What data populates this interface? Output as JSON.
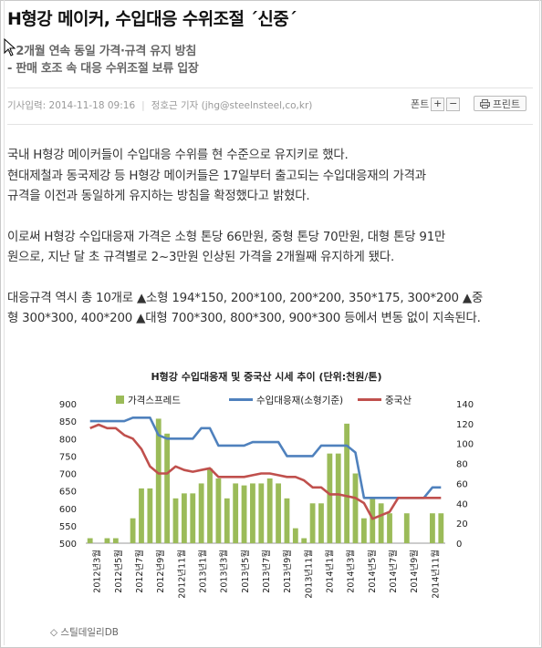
{
  "article": {
    "headline": "H형강 메이커, 수입대응 수위조절 ´신중´",
    "subheads": [
      "- 2개월 연속 동일 가격·규격 유지 방침",
      "- 판매 호조 속 대응 수위조절 보류 입장"
    ],
    "meta": {
      "date_label": "기사입력: 2014-11-18 09:16",
      "reporter_label": "정호근 기자 (jhg@steelnsteel,co,kr)",
      "font_label": "폰트",
      "font_plus": "+",
      "font_minus": "−",
      "print_label": "프린트"
    },
    "paragraphs": [
      [
        "국내 H형강 메이커들이 수입대응 수위를 현 수준으로 유지키로 했다.",
        "현대제철과 동국제강 등 H형강 메이커들은 17일부터 출고되는 수입대응재의 가격과",
        "규격을 이전과 동일하게 유지하는 방침을 확정했다고 밝혔다."
      ],
      [
        "이로써 H형강 수입대응재 가격은 소형 톤당 66만원, 중형 톤당 70만원, 대형 톤당 91만",
        "원으로, 지난 달 초 규격별로 2~3만원 인상된 가격을 2개월째 유지하게 됐다."
      ],
      [
        "대응규격 역시 총 10개로 ▲소형 194*150, 200*100, 200*200, 350*175, 300*200 ▲중",
        "형 300*300, 400*200 ▲대형 700*300, 800*300, 900*300 등에서 변동 없이 지속된다."
      ]
    ],
    "source": "◇ 스틸데일리DB"
  },
  "chart_data": {
    "type": "bar+line",
    "title": "H형강 수입대응재 및 중국산 시세 추이",
    "unit_label": "(단위:천원/톤)",
    "legend": [
      "가격스프레드",
      "수입대응재(소형기준)",
      "중국산"
    ],
    "colors": {
      "bar": "#9bbb59",
      "line_blue": "#4f81bd",
      "line_red": "#c0504d"
    },
    "left_axis": {
      "min": 500,
      "max": 900,
      "ticks": [
        500,
        550,
        600,
        650,
        700,
        750,
        800,
        850,
        900
      ]
    },
    "right_axis": {
      "min": 0,
      "max": 140,
      "ticks": [
        0,
        20,
        40,
        60,
        80,
        100,
        120,
        140
      ]
    },
    "x_labels": [
      "2012년3월",
      "2012년5월",
      "2012년7월",
      "2012년9월",
      "2012년11월",
      "2013년1월",
      "2013년3월",
      "2013년5월",
      "2013년7월",
      "2013년9월",
      "2013년11월",
      "2014년1월",
      "2014년3월",
      "2014년5월",
      "2014년7월",
      "2014년9월",
      "2014년11월"
    ],
    "series": [
      {
        "name": "가격스프레드",
        "type": "bar",
        "axis": "right",
        "values": [
          5,
          0,
          5,
          5,
          0,
          25,
          55,
          55,
          125,
          110,
          45,
          50,
          50,
          60,
          75,
          65,
          45,
          60,
          58,
          60,
          60,
          65,
          60,
          45,
          15,
          5,
          40,
          40,
          90,
          90,
          120,
          70,
          25,
          45,
          40,
          30,
          0,
          30,
          0,
          0,
          30,
          30
        ]
      },
      {
        "name": "수입대응재(소형기준)",
        "type": "line",
        "axis": "left",
        "values": [
          850,
          850,
          850,
          850,
          850,
          860,
          860,
          860,
          810,
          800,
          800,
          800,
          800,
          830,
          830,
          780,
          780,
          780,
          780,
          790,
          790,
          790,
          790,
          750,
          750,
          750,
          750,
          780,
          780,
          780,
          780,
          760,
          630,
          630,
          630,
          630,
          630,
          630,
          630,
          630,
          660,
          660
        ]
      },
      {
        "name": "중국산",
        "type": "line",
        "axis": "left",
        "values": [
          830,
          840,
          830,
          830,
          810,
          800,
          770,
          720,
          700,
          700,
          720,
          710,
          705,
          710,
          715,
          690,
          690,
          690,
          690,
          695,
          700,
          700,
          695,
          690,
          690,
          680,
          660,
          660,
          640,
          640,
          635,
          630,
          615,
          570,
          580,
          590,
          630,
          630,
          630,
          630,
          630,
          630
        ]
      }
    ]
  }
}
